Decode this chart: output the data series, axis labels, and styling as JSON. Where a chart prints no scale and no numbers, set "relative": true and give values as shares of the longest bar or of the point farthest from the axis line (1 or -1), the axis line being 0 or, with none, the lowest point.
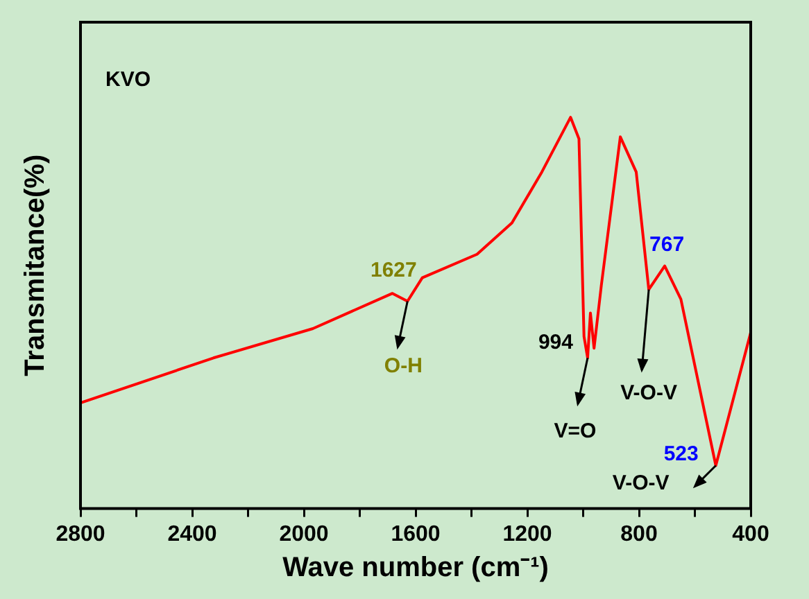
{
  "chart_data": {
    "type": "line",
    "relative": true,
    "xlabel": "Wave number (cm⁻¹)",
    "ylabel": "Transmitance(%)",
    "color": "#ff0000",
    "marker": "none",
    "legend": false,
    "grid": false,
    "tick_labels": "x",
    "x": [
      2800,
      2324,
      1968,
      1683,
      1629,
      1576,
      1380,
      1255,
      1148,
      1045,
      1015,
      997,
      984,
      974,
      961,
      935,
      867,
      810,
      765,
      708,
      650,
      525,
      400
    ],
    "values": [
      0.27,
      0.385,
      0.46,
      0.55,
      0.53,
      0.59,
      0.65,
      0.73,
      0.86,
      1.0,
      0.945,
      0.44,
      0.385,
      0.5,
      0.41,
      0.57,
      0.95,
      0.86,
      0.56,
      0.62,
      0.535,
      0.11,
      0.45
    ],
    "xlim": [
      2800,
      400
    ],
    "xticks": [
      2800,
      {
        "value": 2600,
        "label": null
      },
      2400,
      {
        "value": 2200,
        "label": null
      },
      2000,
      {
        "value": 1800,
        "label": null
      },
      1600,
      {
        "value": 1400,
        "label": null
      },
      1200,
      {
        "value": 1000,
        "label": null
      },
      800,
      {
        "value": 600,
        "label": null
      },
      400
    ],
    "annotations": [
      "KVO",
      {
        "text": "1627",
        "x": 1629,
        "y": 0.53
      },
      {
        "text": "O-H",
        "x": 1629,
        "y": 0.53
      },
      {
        "text": "994",
        "x": 984,
        "y": 0.385
      },
      {
        "text": "V=O",
        "x": 984,
        "y": 0.385
      },
      {
        "text": "767",
        "x": 765,
        "y": 0.56
      },
      {
        "text": "V-O-V",
        "x": 765,
        "y": 0.56
      },
      {
        "text": "523",
        "x": 525,
        "y": 0.11
      },
      {
        "text": "V-O-V",
        "x": 525,
        "y": 0.11
      }
    ]
  }
}
